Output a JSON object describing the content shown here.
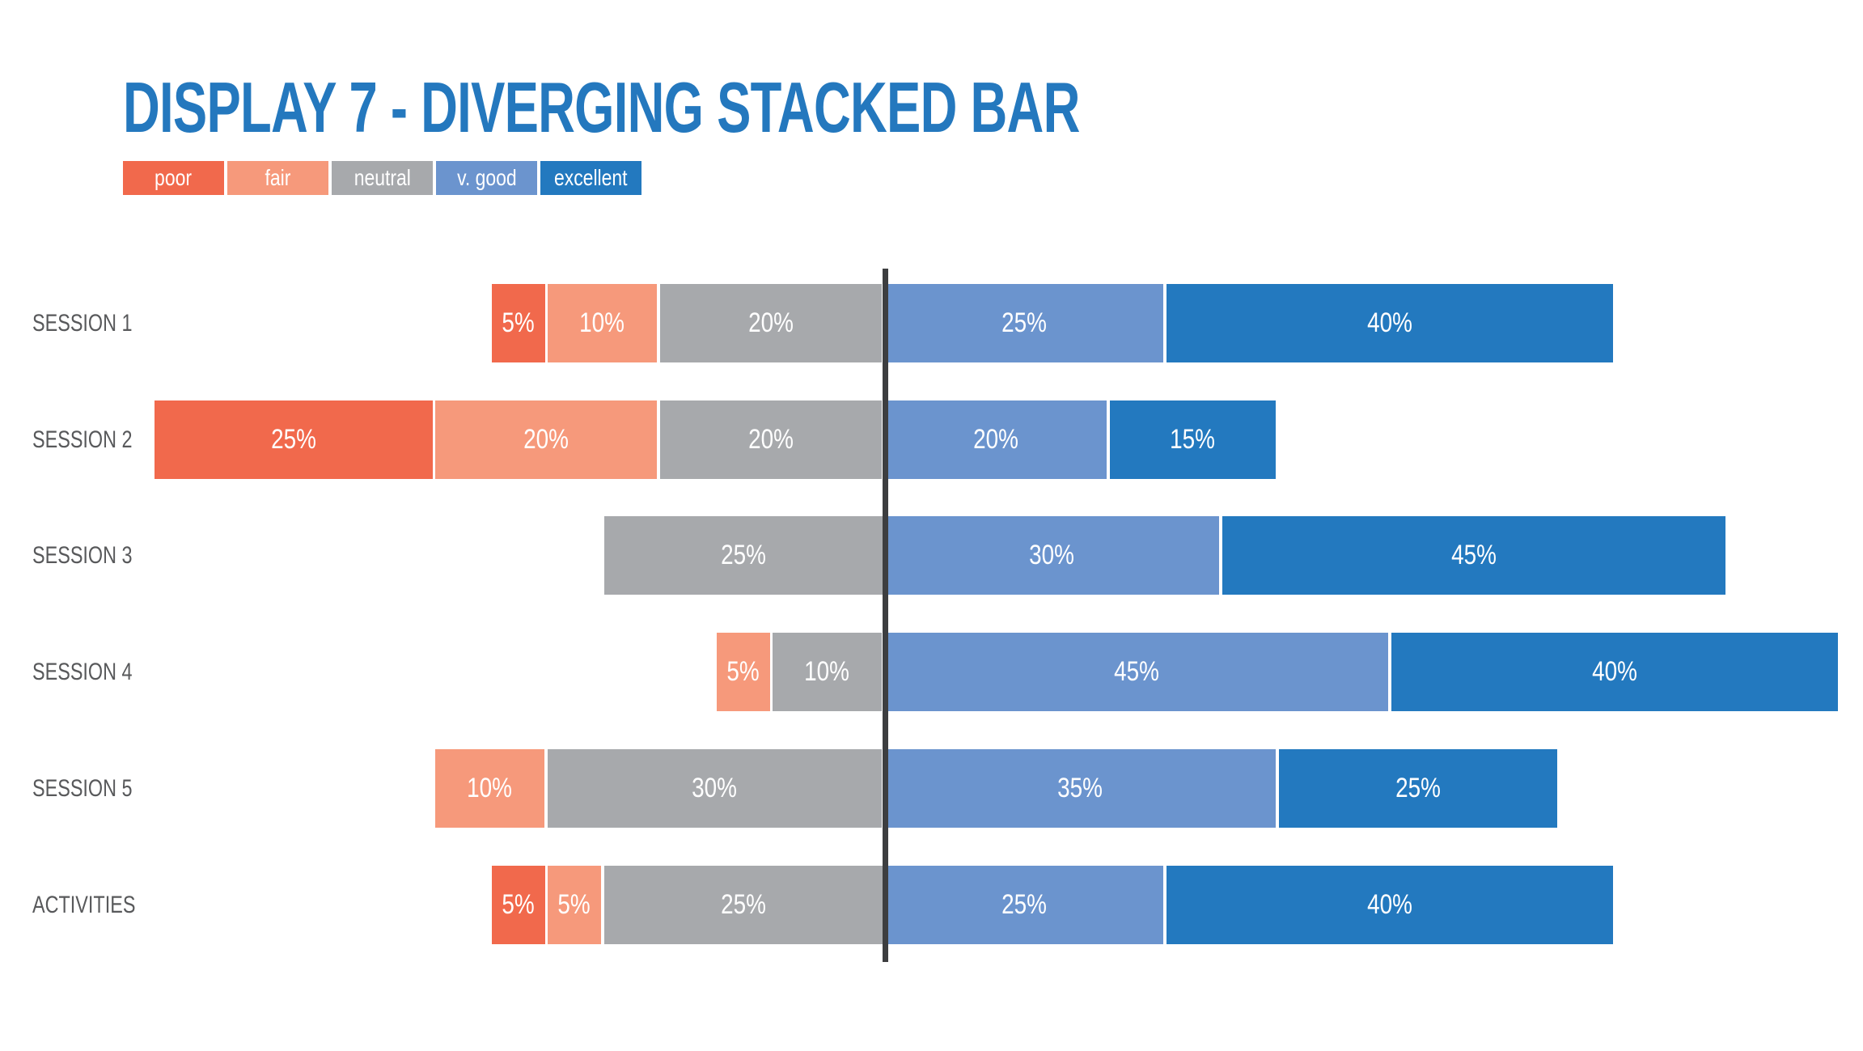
{
  "title": "DISPLAY 7 - DIVERGING STACKED BAR",
  "colors": {
    "title": "#2478BE",
    "axis_line": "#3D3E40",
    "category_label": "#58595B",
    "background": "#FFFFFF",
    "segment_gap": "#FFFFFF"
  },
  "legend": {
    "position": "top-left",
    "labels": [
      "poor",
      "fair",
      "neutral",
      "v. good",
      "excellent"
    ]
  },
  "chart_data": {
    "type": "bar",
    "variant": "diverging_stacked_horizontal",
    "title": "DISPLAY 7 - DIVERGING STACKED BAR",
    "unit": "%",
    "value_label_format": "{v}%",
    "axis": {
      "zero_line": true,
      "left_of_zero": [
        "poor",
        "fair",
        "neutral"
      ],
      "right_of_zero": [
        "v. good",
        "excellent"
      ]
    },
    "categories": [
      "SESSION 1",
      "SESSION 2",
      "SESSION 3",
      "SESSION 4",
      "SESSION 5",
      "ACTIVITIES"
    ],
    "series": [
      {
        "name": "poor",
        "color": "#F1694C",
        "values": [
          5,
          25,
          0,
          0,
          0,
          5
        ]
      },
      {
        "name": "fair",
        "color": "#F6997B",
        "values": [
          10,
          20,
          0,
          5,
          10,
          5
        ]
      },
      {
        "name": "neutral",
        "color": "#A7A9AC",
        "values": [
          20,
          20,
          25,
          10,
          30,
          25
        ]
      },
      {
        "name": "v. good",
        "color": "#6B94CE",
        "values": [
          25,
          20,
          30,
          45,
          35,
          25
        ]
      },
      {
        "name": "excellent",
        "color": "#2379BF",
        "values": [
          40,
          15,
          45,
          40,
          25,
          40
        ]
      }
    ],
    "row_totals_check": [
      100,
      100,
      100,
      100,
      100,
      100
    ]
  }
}
